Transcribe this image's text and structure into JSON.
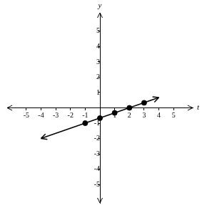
{
  "chart_data": {
    "type": "scatter",
    "x_label": "t",
    "y_label": "y",
    "xlim": [
      -6.3,
      6.3
    ],
    "ylim": [
      -6.2,
      6.2
    ],
    "xticks": [
      -5,
      -4,
      -3,
      -2,
      -1,
      1,
      2,
      3,
      4,
      5
    ],
    "yticks": [
      -5,
      -4,
      -3,
      -2,
      -1,
      1,
      2,
      3,
      4,
      5
    ],
    "grid": false,
    "series": [
      {
        "type": "scatter",
        "marker": "circle",
        "color": "#000000",
        "x": [
          -1,
          0,
          1,
          2,
          3
        ],
        "values": [
          -1,
          -0.67,
          -0.33,
          0,
          0.33
        ]
      },
      {
        "type": "line",
        "line_style": "solid",
        "color": "#000000",
        "x": [
          -4,
          4
        ],
        "values": [
          -2,
          0.67
        ]
      }
    ]
  }
}
